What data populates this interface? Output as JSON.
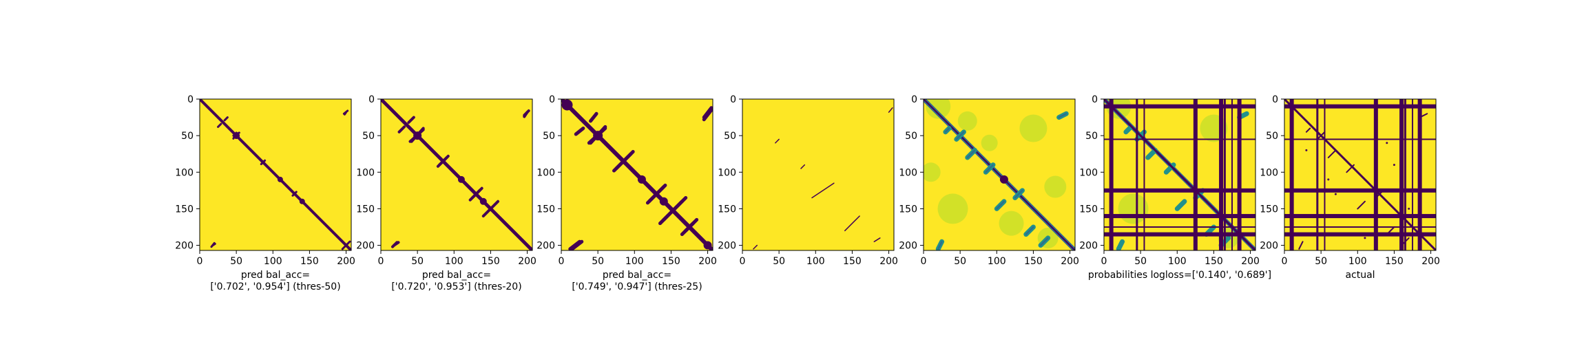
{
  "colors": {
    "high": "#fde725",
    "low": "#440154",
    "mid": "#31688e",
    "light": "#b5de2b",
    "teal": "#21918c"
  },
  "chart_data": [
    {
      "type": "heatmap",
      "panel": "pred-thres-50",
      "matrix_size": 207,
      "xlim": [
        0,
        207
      ],
      "ylim": [
        207,
        0
      ],
      "xticks": [
        "0",
        "50",
        "100",
        "150",
        "200"
      ],
      "yticks": [
        "0",
        "50",
        "100",
        "150",
        "200"
      ],
      "xlabel_lines": [
        "pred bal_acc=",
        "['0.702', '0.954'] (thres-50)"
      ],
      "balanced_accuracy": [
        0.702,
        0.954
      ],
      "threshold": 50
    },
    {
      "type": "heatmap",
      "panel": "pred-thres-20",
      "matrix_size": 207,
      "xlim": [
        0,
        207
      ],
      "ylim": [
        207,
        0
      ],
      "xticks": [
        "0",
        "50",
        "100",
        "150",
        "200"
      ],
      "yticks": [
        "0",
        "50",
        "100",
        "150",
        "200"
      ],
      "xlabel_lines": [
        "pred bal_acc=",
        "['0.720', '0.953'] (thres-20)"
      ],
      "balanced_accuracy": [
        0.72,
        0.953
      ],
      "threshold": 20
    },
    {
      "type": "heatmap",
      "panel": "pred-thres-25",
      "matrix_size": 207,
      "xlim": [
        0,
        207
      ],
      "ylim": [
        207,
        0
      ],
      "xticks": [
        "0",
        "50",
        "100",
        "150",
        "200"
      ],
      "yticks": [
        "0",
        "50",
        "100",
        "150",
        "200"
      ],
      "xlabel_lines": [
        "pred bal_acc=",
        "['0.749', '0.947'] (thres-25)"
      ],
      "balanced_accuracy": [
        0.749,
        0.947
      ],
      "threshold": 25
    },
    {
      "type": "heatmap",
      "panel": "sparse",
      "matrix_size": 207,
      "xlim": [
        0,
        207
      ],
      "ylim": [
        207,
        0
      ],
      "xticks": [
        "0",
        "50",
        "100",
        "150",
        "200"
      ],
      "yticks": [
        "0",
        "50",
        "100",
        "150",
        "200"
      ],
      "xlabel_lines": []
    },
    {
      "type": "heatmap",
      "panel": "probabilities",
      "matrix_size": 207,
      "xlim": [
        0,
        207
      ],
      "ylim": [
        207,
        0
      ],
      "xticks": [
        "0",
        "50",
        "100",
        "150",
        "200"
      ],
      "yticks": [
        "0",
        "50",
        "100",
        "150",
        "200"
      ],
      "xlabel_lines": []
    },
    {
      "type": "heatmap",
      "panel": "probabilities-masked",
      "matrix_size": 207,
      "xlim": [
        0,
        207
      ],
      "ylim": [
        207,
        0
      ],
      "xticks": [
        "0",
        "50",
        "100",
        "150",
        "200"
      ],
      "yticks": [
        "0",
        "50",
        "100",
        "150",
        "200"
      ],
      "xlabel_lines": [
        "probabilities logloss=['0.140', '0.689']"
      ],
      "logloss": [
        0.14,
        0.689
      ]
    },
    {
      "type": "heatmap",
      "panel": "actual",
      "matrix_size": 207,
      "xlim": [
        0,
        207
      ],
      "ylim": [
        207,
        0
      ],
      "xticks": [
        "0",
        "50",
        "100",
        "150",
        "200"
      ],
      "yticks": [
        "0",
        "50",
        "100",
        "150",
        "200"
      ],
      "xlabel_lines": [
        "actual"
      ]
    }
  ]
}
